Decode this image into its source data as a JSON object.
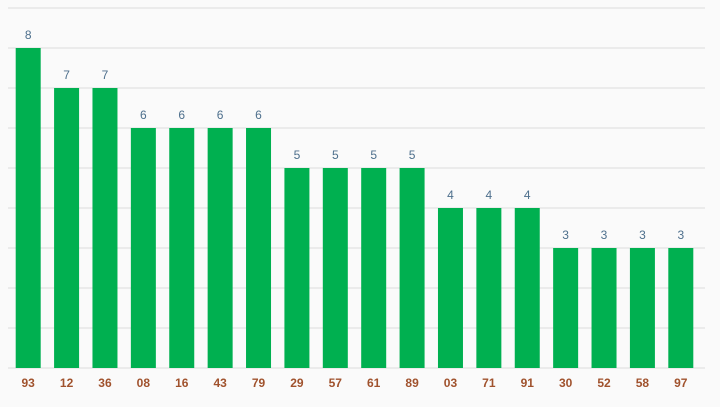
{
  "chart_data": {
    "type": "bar",
    "categories": [
      "93",
      "12",
      "36",
      "08",
      "16",
      "43",
      "79",
      "29",
      "57",
      "61",
      "89",
      "03",
      "71",
      "91",
      "30",
      "52",
      "58",
      "97"
    ],
    "values": [
      8,
      7,
      7,
      6,
      6,
      6,
      6,
      5,
      5,
      5,
      5,
      4,
      4,
      4,
      3,
      3,
      3,
      3
    ],
    "color": "#00b050",
    "ylim": [
      0,
      9
    ],
    "yticks": [
      0,
      1,
      2,
      3,
      4,
      5,
      6,
      7,
      8,
      9
    ],
    "grid": true
  }
}
